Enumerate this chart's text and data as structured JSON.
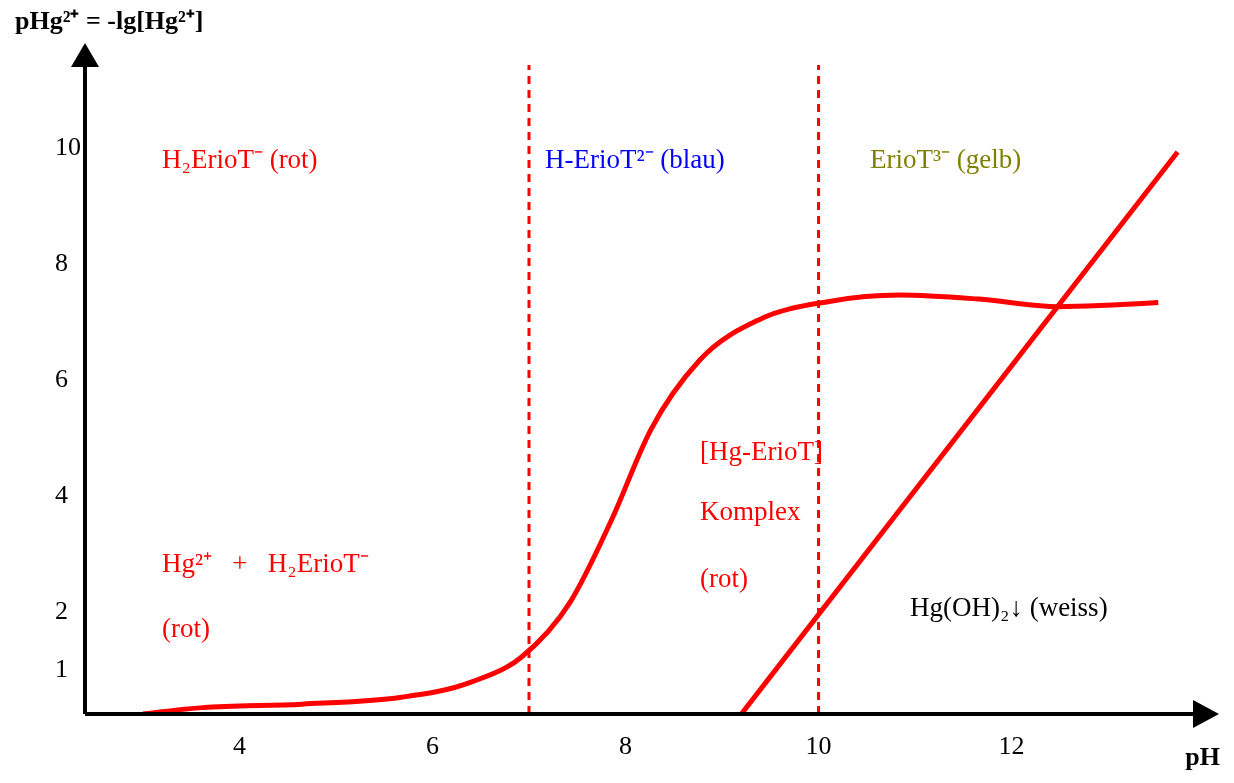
{
  "chart_data": {
    "type": "line",
    "xlabel": "pH",
    "ylabel": "pHg²⁺ = -lg[Hg²⁺]",
    "xlim": [
      2.4,
      13.9
    ],
    "ylim": [
      0.2,
      11.4
    ],
    "xticks": [
      4,
      6,
      8,
      10,
      12
    ],
    "yticks": [
      1,
      2,
      4,
      6,
      8,
      10
    ],
    "grid": false,
    "legend": false,
    "marker": "none",
    "line_style": "solid",
    "series": [
      {
        "color": "#ff0000",
        "x": [
          3.0,
          3.62,
          4.65,
          5.68,
          6.4,
          6.92,
          7.43,
          7.85,
          8.26,
          8.77,
          9.39,
          10.11,
          10.84,
          11.66,
          12.48,
          13.52
        ],
        "values": [
          0.2,
          0.31,
          0.37,
          0.49,
          0.75,
          1.18,
          2.14,
          3.53,
          5.1,
          6.31,
          7.01,
          7.32,
          7.43,
          7.36,
          7.23,
          7.3
        ]
      },
      {
        "color": "#ff0000",
        "x": [
          9.2,
          13.72
        ],
        "values": [
          0.2,
          9.9
        ]
      }
    ],
    "ref_lines": [
      {
        "axis": "x",
        "value": 7,
        "color": "#ff0000",
        "line_style": "dashed"
      },
      {
        "axis": "x",
        "value": 10,
        "color": "#ff0000",
        "line_style": "dashed"
      }
    ],
    "annotations": [
      "H₂ErioT⁻ (rot)",
      "H-ErioT²⁻ (blau)",
      "ErioT³⁻ (gelb)",
      "Hg²⁺   +   H₂ErioT⁻",
      "(rot)",
      "[Hg-ErioT]",
      "Komplex",
      "(rot)",
      "Hg(OH)₂↓ (weiss)"
    ]
  }
}
